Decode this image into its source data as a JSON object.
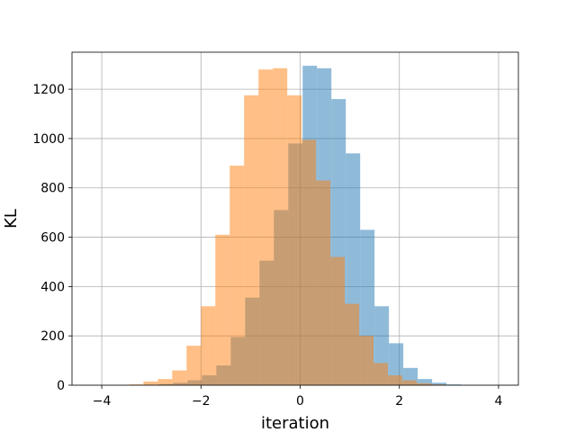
{
  "chart_data": {
    "type": "histogram",
    "title": "",
    "xlabel": "iteration",
    "ylabel": "KL",
    "xlim": [
      -4.6,
      4.4
    ],
    "ylim": [
      0,
      1350
    ],
    "xticks": [
      -4,
      -2,
      0,
      2,
      4
    ],
    "yticks": [
      0,
      200,
      400,
      600,
      800,
      1000,
      1200
    ],
    "grid": true,
    "series": [
      {
        "color": "#1f77b4",
        "opacity": 0.5,
        "bin_width": 0.29,
        "bins": [
          [
            -3.14,
            2
          ],
          [
            -2.85,
            5
          ],
          [
            -2.56,
            10
          ],
          [
            -2.27,
            20
          ],
          [
            -1.98,
            40
          ],
          [
            -1.69,
            80
          ],
          [
            -1.4,
            195
          ],
          [
            -1.11,
            355
          ],
          [
            -0.82,
            505
          ],
          [
            -0.53,
            710
          ],
          [
            -0.24,
            980
          ],
          [
            0.05,
            1295
          ],
          [
            0.34,
            1285
          ],
          [
            0.63,
            1160
          ],
          [
            0.92,
            940
          ],
          [
            1.21,
            630
          ],
          [
            1.5,
            320
          ],
          [
            1.79,
            170
          ],
          [
            2.08,
            70
          ],
          [
            2.37,
            25
          ],
          [
            2.66,
            10
          ],
          [
            2.95,
            3
          ]
        ]
      },
      {
        "color": "#ff7f0e",
        "opacity": 0.5,
        "bin_width": 0.29,
        "bins": [
          [
            -3.45,
            3
          ],
          [
            -3.16,
            15
          ],
          [
            -2.87,
            25
          ],
          [
            -2.58,
            60
          ],
          [
            -2.29,
            160
          ],
          [
            -2.0,
            320
          ],
          [
            -1.71,
            610
          ],
          [
            -1.42,
            890
          ],
          [
            -1.13,
            1175
          ],
          [
            -0.84,
            1280
          ],
          [
            -0.55,
            1285
          ],
          [
            -0.26,
            1175
          ],
          [
            0.03,
            995
          ],
          [
            0.32,
            830
          ],
          [
            0.61,
            520
          ],
          [
            0.9,
            330
          ],
          [
            1.19,
            200
          ],
          [
            1.48,
            90
          ],
          [
            1.77,
            40
          ],
          [
            2.06,
            20
          ],
          [
            2.35,
            8
          ],
          [
            2.64,
            3
          ]
        ]
      }
    ]
  }
}
